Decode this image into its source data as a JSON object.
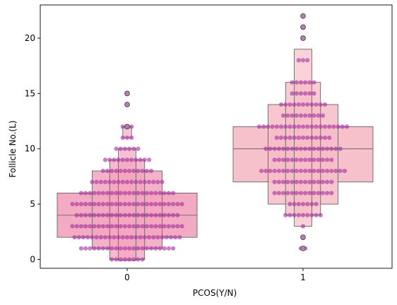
{
  "chart_data": {
    "type": "boxenplot_swarm",
    "xlabel": "PCOS(Y/N)",
    "ylabel": "Follicle No.(L)",
    "categories": [
      "0",
      "1"
    ],
    "yticks": [
      0,
      5,
      10,
      15,
      20
    ],
    "ylim": [
      -0.8,
      23
    ],
    "grid": false,
    "colors": {
      "box_0": "#f2a7c0",
      "box_1": "#f6bec8",
      "points": "#a8309e",
      "outliers": "#b57fb5"
    },
    "boxen": [
      {
        "category": "0",
        "median": 4,
        "levels": [
          [
            2,
            6
          ],
          [
            1,
            8
          ],
          [
            0,
            9
          ],
          [
            -0.1,
            10
          ],
          [
            11,
            12
          ]
        ]
      },
      {
        "category": "1",
        "median": 10,
        "levels": [
          [
            7,
            12
          ],
          [
            5,
            14
          ],
          [
            4,
            16
          ],
          [
            3,
            19
          ]
        ]
      }
    ],
    "swarm_counts": [
      {
        "category": "0",
        "counts": {
          "0": 8,
          "1": 22,
          "2": 25,
          "3": 26,
          "4": 24,
          "5": 26,
          "6": 22,
          "7": 17,
          "8": 12,
          "9": 11,
          "10": 6,
          "11": 3,
          "12": 3,
          "14": 1,
          "15": 1
        }
      },
      {
        "category": "1",
        "counts": {
          "1": 2,
          "2": 1,
          "3": 1,
          "4": 9,
          "5": 7,
          "6": 14,
          "7": 14,
          "8": 20,
          "9": 14,
          "10": 18,
          "11": 13,
          "12": 21,
          "13": 10,
          "14": 11,
          "15": 6,
          "16": 6,
          "18": 3,
          "20": 1,
          "21": 1,
          "22": 1
        }
      }
    ],
    "outliers": [
      {
        "category": "0",
        "values": [
          12,
          14,
          15
        ]
      },
      {
        "category": "1",
        "values": [
          1,
          2,
          20,
          21,
          22
        ]
      }
    ]
  }
}
